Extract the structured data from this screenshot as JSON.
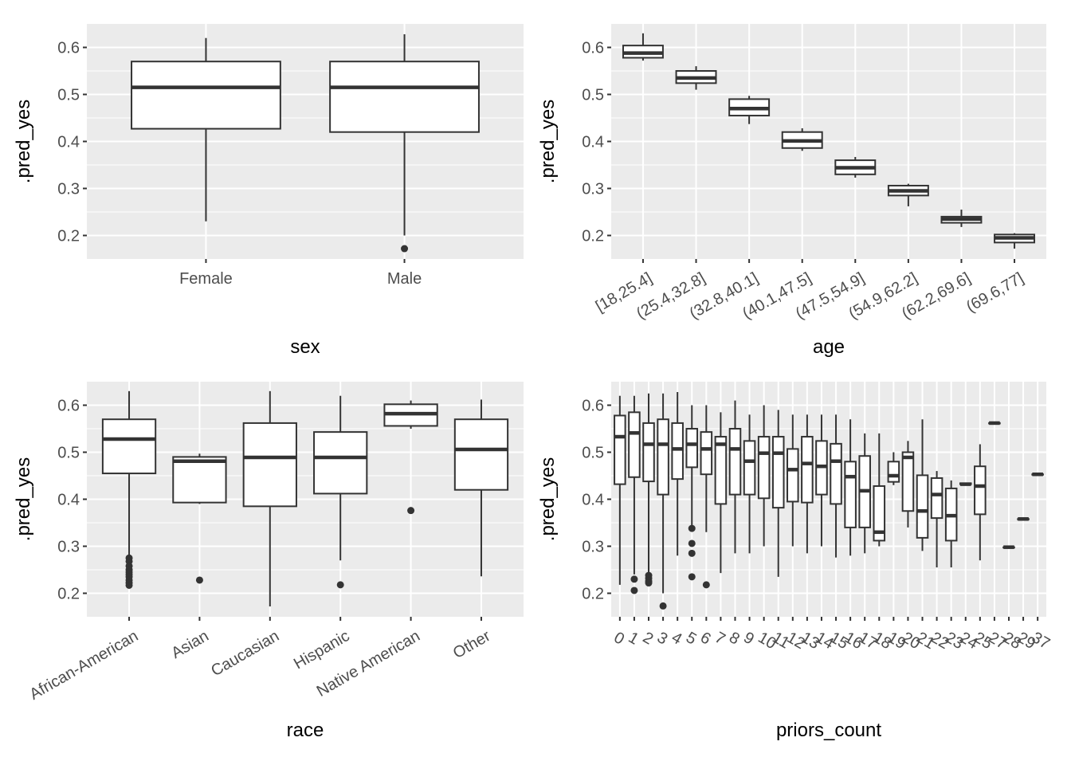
{
  "chart_data": [
    {
      "type": "boxplot",
      "xlabel": "sex",
      "ylabel": ".pred_yes",
      "y_ticks": [
        0.2,
        0.3,
        0.4,
        0.5,
        0.6
      ],
      "ylim": [
        0.15,
        0.65
      ],
      "x_tick_rotation": 0,
      "grid": true,
      "categories": [
        "Female",
        "Male"
      ],
      "boxes": [
        {
          "min": 0.23,
          "q1": 0.427,
          "median": 0.515,
          "q3": 0.57,
          "max": 0.62,
          "outliers": []
        },
        {
          "min": 0.2,
          "q1": 0.42,
          "median": 0.515,
          "q3": 0.57,
          "max": 0.628,
          "outliers": [
            0.172
          ]
        }
      ]
    },
    {
      "type": "boxplot",
      "xlabel": "age",
      "ylabel": ".pred_yes",
      "y_ticks": [
        0.2,
        0.3,
        0.4,
        0.5,
        0.6
      ],
      "ylim": [
        0.15,
        0.65
      ],
      "x_tick_rotation": -30,
      "grid": true,
      "categories": [
        "[18,25.4]",
        "(25.4,32.8]",
        "(32.8,40.1]",
        "(40.1,47.5]",
        "(47.5,54.9]",
        "(54.9,62.2]",
        "(62.2,69.6]",
        "(69.6,77]"
      ],
      "boxes": [
        {
          "min": 0.572,
          "q1": 0.578,
          "median": 0.588,
          "q3": 0.604,
          "max": 0.63,
          "outliers": []
        },
        {
          "min": 0.51,
          "q1": 0.524,
          "median": 0.535,
          "q3": 0.55,
          "max": 0.56,
          "outliers": []
        },
        {
          "min": 0.437,
          "q1": 0.455,
          "median": 0.47,
          "q3": 0.49,
          "max": 0.497,
          "outliers": []
        },
        {
          "min": 0.38,
          "q1": 0.386,
          "median": 0.401,
          "q3": 0.42,
          "max": 0.428,
          "outliers": []
        },
        {
          "min": 0.323,
          "q1": 0.33,
          "median": 0.344,
          "q3": 0.36,
          "max": 0.367,
          "outliers": []
        },
        {
          "min": 0.262,
          "q1": 0.285,
          "median": 0.295,
          "q3": 0.306,
          "max": 0.31,
          "outliers": []
        },
        {
          "min": 0.218,
          "q1": 0.227,
          "median": 0.235,
          "q3": 0.24,
          "max": 0.255,
          "outliers": []
        },
        {
          "min": 0.172,
          "q1": 0.185,
          "median": 0.195,
          "q3": 0.202,
          "max": 0.205,
          "outliers": []
        }
      ]
    },
    {
      "type": "boxplot",
      "xlabel": "race",
      "ylabel": ".pred_yes",
      "y_ticks": [
        0.2,
        0.3,
        0.4,
        0.5,
        0.6
      ],
      "ylim": [
        0.15,
        0.65
      ],
      "x_tick_rotation": -30,
      "grid": true,
      "categories": [
        "African-American",
        "Asian",
        "Caucasian",
        "Hispanic",
        "Native American",
        "Other"
      ],
      "boxes": [
        {
          "min": 0.28,
          "q1": 0.455,
          "median": 0.528,
          "q3": 0.57,
          "max": 0.63,
          "outliers": [
            0.275,
            0.268,
            0.258,
            0.25,
            0.245,
            0.24,
            0.235,
            0.228,
            0.222,
            0.217
          ]
        },
        {
          "min": 0.39,
          "q1": 0.393,
          "median": 0.481,
          "q3": 0.49,
          "max": 0.497,
          "outliers": [
            0.228
          ]
        },
        {
          "min": 0.172,
          "q1": 0.385,
          "median": 0.489,
          "q3": 0.562,
          "max": 0.63,
          "outliers": []
        },
        {
          "min": 0.27,
          "q1": 0.412,
          "median": 0.489,
          "q3": 0.543,
          "max": 0.62,
          "outliers": [
            0.218
          ]
        },
        {
          "min": 0.55,
          "q1": 0.556,
          "median": 0.582,
          "q3": 0.602,
          "max": 0.61,
          "outliers": [
            0.376
          ]
        },
        {
          "min": 0.236,
          "q1": 0.42,
          "median": 0.506,
          "q3": 0.57,
          "max": 0.612,
          "outliers": []
        }
      ]
    },
    {
      "type": "boxplot",
      "xlabel": "priors_count",
      "ylabel": ".pred_yes",
      "y_ticks": [
        0.2,
        0.3,
        0.4,
        0.5,
        0.6
      ],
      "ylim": [
        0.15,
        0.65
      ],
      "x_tick_rotation": 30,
      "grid": true,
      "categories": [
        "0",
        "1",
        "2",
        "3",
        "4",
        "5",
        "6",
        "7",
        "8",
        "9",
        "10",
        "11",
        "12",
        "13",
        "14",
        "15",
        "16",
        "17",
        "18",
        "19",
        "20",
        "21",
        "22",
        "23",
        "24",
        "25",
        "27",
        "28",
        "29",
        "37"
      ],
      "boxes": [
        {
          "min": 0.218,
          "q1": 0.432,
          "median": 0.533,
          "q3": 0.578,
          "max": 0.62,
          "outliers": []
        },
        {
          "min": 0.24,
          "q1": 0.447,
          "median": 0.541,
          "q3": 0.585,
          "max": 0.62,
          "outliers": [
            0.23,
            0.206
          ]
        },
        {
          "min": 0.24,
          "q1": 0.438,
          "median": 0.517,
          "q3": 0.562,
          "max": 0.625,
          "outliers": [
            0.238,
            0.232,
            0.226,
            0.222
          ]
        },
        {
          "min": 0.2,
          "q1": 0.41,
          "median": 0.517,
          "q3": 0.57,
          "max": 0.625,
          "outliers": [
            0.173
          ]
        },
        {
          "min": 0.28,
          "q1": 0.443,
          "median": 0.507,
          "q3": 0.562,
          "max": 0.628,
          "outliers": []
        },
        {
          "min": 0.345,
          "q1": 0.468,
          "median": 0.517,
          "q3": 0.55,
          "max": 0.6,
          "outliers": [
            0.338,
            0.306,
            0.285,
            0.235
          ]
        },
        {
          "min": 0.33,
          "q1": 0.453,
          "median": 0.507,
          "q3": 0.543,
          "max": 0.6,
          "outliers": [
            0.218
          ]
        },
        {
          "min": 0.243,
          "q1": 0.39,
          "median": 0.517,
          "q3": 0.533,
          "max": 0.585,
          "outliers": []
        },
        {
          "min": 0.285,
          "q1": 0.41,
          "median": 0.507,
          "q3": 0.55,
          "max": 0.61,
          "outliers": []
        },
        {
          "min": 0.285,
          "q1": 0.41,
          "median": 0.481,
          "q3": 0.524,
          "max": 0.58,
          "outliers": []
        },
        {
          "min": 0.3,
          "q1": 0.402,
          "median": 0.498,
          "q3": 0.533,
          "max": 0.6,
          "outliers": []
        },
        {
          "min": 0.235,
          "q1": 0.382,
          "median": 0.498,
          "q3": 0.533,
          "max": 0.59,
          "outliers": []
        },
        {
          "min": 0.3,
          "q1": 0.395,
          "median": 0.463,
          "q3": 0.507,
          "max": 0.58,
          "outliers": []
        },
        {
          "min": 0.285,
          "q1": 0.393,
          "median": 0.476,
          "q3": 0.533,
          "max": 0.58,
          "outliers": []
        },
        {
          "min": 0.3,
          "q1": 0.41,
          "median": 0.47,
          "q3": 0.524,
          "max": 0.58,
          "outliers": []
        },
        {
          "min": 0.276,
          "q1": 0.39,
          "median": 0.481,
          "q3": 0.518,
          "max": 0.58,
          "outliers": []
        },
        {
          "min": 0.28,
          "q1": 0.34,
          "median": 0.448,
          "q3": 0.48,
          "max": 0.57,
          "outliers": []
        },
        {
          "min": 0.285,
          "q1": 0.34,
          "median": 0.418,
          "q3": 0.492,
          "max": 0.54,
          "outliers": []
        },
        {
          "min": 0.3,
          "q1": 0.312,
          "median": 0.33,
          "q3": 0.428,
          "max": 0.54,
          "outliers": []
        },
        {
          "min": 0.43,
          "q1": 0.437,
          "median": 0.45,
          "q3": 0.48,
          "max": 0.5,
          "outliers": []
        },
        {
          "min": 0.34,
          "q1": 0.375,
          "median": 0.489,
          "q3": 0.5,
          "max": 0.524,
          "outliers": []
        },
        {
          "min": 0.29,
          "q1": 0.318,
          "median": 0.375,
          "q3": 0.451,
          "max": 0.57,
          "outliers": []
        },
        {
          "min": 0.255,
          "q1": 0.36,
          "median": 0.41,
          "q3": 0.445,
          "max": 0.46,
          "outliers": []
        },
        {
          "min": 0.255,
          "q1": 0.312,
          "median": 0.365,
          "q3": 0.423,
          "max": 0.44,
          "outliers": []
        },
        {
          "min": 0.432,
          "q1": 0.432,
          "median": 0.432,
          "q3": 0.434,
          "max": 0.434,
          "outliers": []
        },
        {
          "min": 0.27,
          "q1": 0.368,
          "median": 0.428,
          "q3": 0.47,
          "max": 0.517,
          "outliers": []
        },
        {
          "min": 0.562,
          "q1": 0.562,
          "median": 0.562,
          "q3": 0.562,
          "max": 0.562,
          "outliers": []
        },
        {
          "min": 0.298,
          "q1": 0.298,
          "median": 0.298,
          "q3": 0.298,
          "max": 0.298,
          "outliers": []
        },
        {
          "min": 0.358,
          "q1": 0.358,
          "median": 0.358,
          "q3": 0.358,
          "max": 0.358,
          "outliers": []
        },
        {
          "min": 0.453,
          "q1": 0.453,
          "median": 0.453,
          "q3": 0.453,
          "max": 0.453,
          "outliers": []
        }
      ]
    }
  ]
}
